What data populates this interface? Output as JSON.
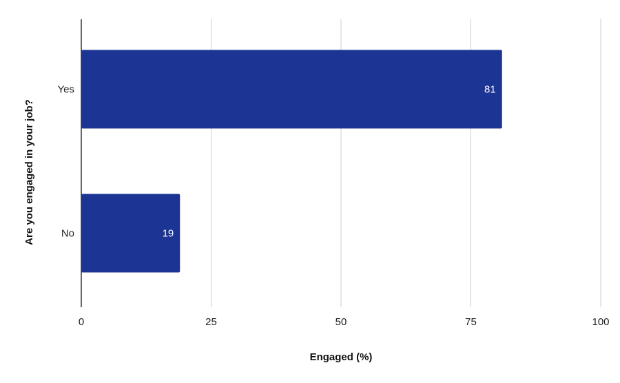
{
  "chart_data": {
    "type": "bar",
    "orientation": "horizontal",
    "categories": [
      "Yes",
      "No"
    ],
    "values": [
      81,
      19
    ],
    "data_labels": [
      "81",
      "19"
    ],
    "xlabel": "Engaged (%)",
    "ylabel": "Are you engaged in your job?",
    "xlim": [
      0,
      100
    ],
    "xticks": [
      "0",
      "25",
      "50",
      "75",
      "100"
    ],
    "grid": true,
    "legend": "none",
    "bar_color": "#1c3494"
  }
}
